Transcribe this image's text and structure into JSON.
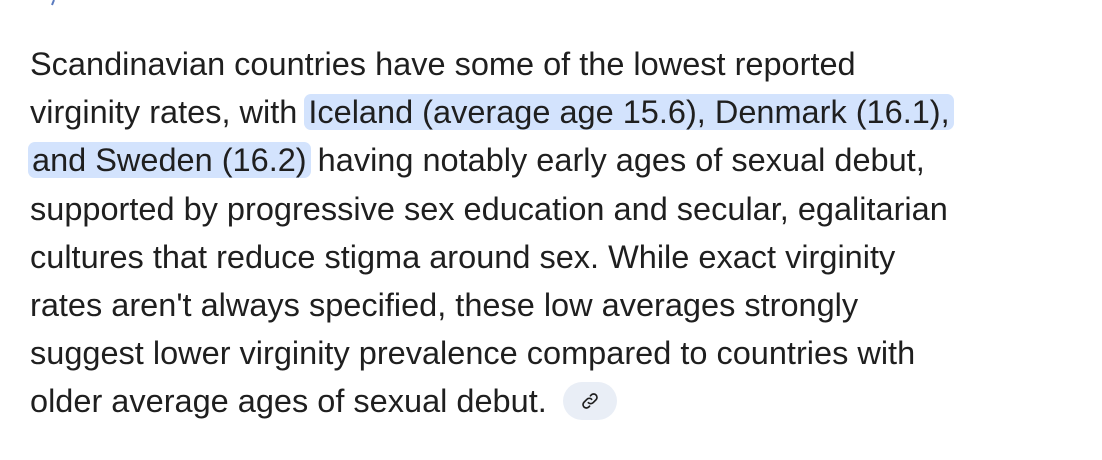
{
  "paragraph": {
    "lines": [
      [
        {
          "text": "Scandinavian countries have some of the lowest reported",
          "highlighted": false
        }
      ],
      [
        {
          "text": "virginity rates, with ",
          "highlighted": false
        },
        {
          "text": "Iceland (average age 15.6), Denmark (16.1),",
          "highlighted": true
        }
      ],
      [
        {
          "text": "and Sweden (16.2)",
          "highlighted": true
        },
        {
          "text": " having notably early ages of sexual debut,",
          "highlighted": false
        }
      ],
      [
        {
          "text": "supported by progressive sex education and secular, egalitarian",
          "highlighted": false
        }
      ],
      [
        {
          "text": "cultures that reduce stigma around sex. While exact virginity",
          "highlighted": false
        }
      ],
      [
        {
          "text": "rates aren't always specified, these low averages strongly",
          "highlighted": false
        }
      ],
      [
        {
          "text": "suggest lower virginity prevalence compared to countries with",
          "highlighted": false
        }
      ],
      [
        {
          "text": "older average ages of sexual debut.",
          "highlighted": false
        }
      ]
    ]
  }
}
